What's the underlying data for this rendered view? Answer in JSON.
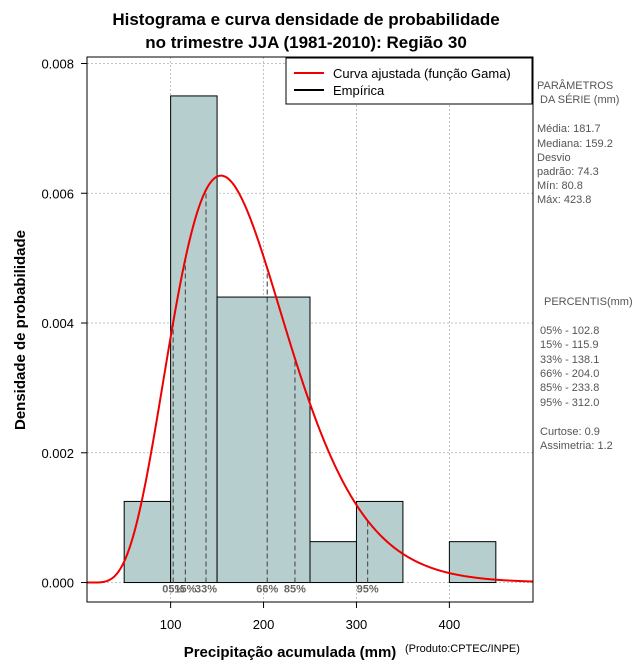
{
  "chart_data": {
    "type": "bar",
    "title": [
      "Histograma e curva densidade de probabilidade",
      "no trimestre JJA (1981-2010): Região 30"
    ],
    "xlabel": "Precipitação acumulada (mm)",
    "ylabel": "Densidade de probabilidade",
    "credit": "(Produto:CPTEC/INPE)",
    "xlim": [
      10,
      490
    ],
    "ylim": [
      -0.0003,
      0.0081
    ],
    "x_ticks": [
      100,
      200,
      300,
      400
    ],
    "y_ticks": [
      0.0,
      0.002,
      0.004,
      0.006,
      0.008
    ],
    "y_tick_labels": [
      "0.000",
      "0.002",
      "0.004",
      "0.006",
      "0.008"
    ],
    "grid": true,
    "bins": [
      {
        "start": 50,
        "end": 100,
        "density": 0.00125
      },
      {
        "start": 100,
        "end": 150,
        "density": 0.0075
      },
      {
        "start": 150,
        "end": 250,
        "density": 0.0044
      },
      {
        "start": 250,
        "end": 300,
        "density": 0.00063
      },
      {
        "start": 300,
        "end": 350,
        "density": 0.00125
      },
      {
        "start": 400,
        "end": 450,
        "density": 0.00063
      }
    ],
    "gamma_fit": {
      "shape": 6.3,
      "location": 10.0,
      "scale": 27.2
    },
    "legend": [
      "Curva ajustada (função Gama)",
      "Empírica"
    ],
    "percentile_markers": [
      {
        "label": "05%",
        "x": 102.8
      },
      {
        "label": "15%",
        "x": 115.9
      },
      {
        "label": "33%",
        "x": 138.1
      },
      {
        "label": "66%",
        "x": 204.0
      },
      {
        "label": "85%",
        "x": 233.8
      },
      {
        "label": "95%",
        "x": 312.0
      }
    ],
    "colors": {
      "bar_fill": "#b6cece",
      "curve": "#ee0000",
      "empirical": "#000000",
      "grid": "#b0b0b0",
      "marker": "#555555"
    }
  },
  "side_panel": {
    "params_title": [
      "PARÂMETROS",
      "DA SÉRIE (mm)"
    ],
    "params": [
      "Média:  181.7",
      "Mediana:  159.2",
      "Desvio",
      "padrão:  74.3",
      "Mín:  80.8",
      "Máx:  423.8"
    ],
    "percentis_title": "PERCENTIS(mm)",
    "percentis": [
      "05% -  102.8",
      "15% -  115.9",
      "33% -  138.1",
      "66% -  204.0",
      "85% -  233.8",
      "95% -  312.0"
    ],
    "shape_stats": [
      "Curtose:  0.9",
      "Assimetria:  1.2"
    ]
  }
}
